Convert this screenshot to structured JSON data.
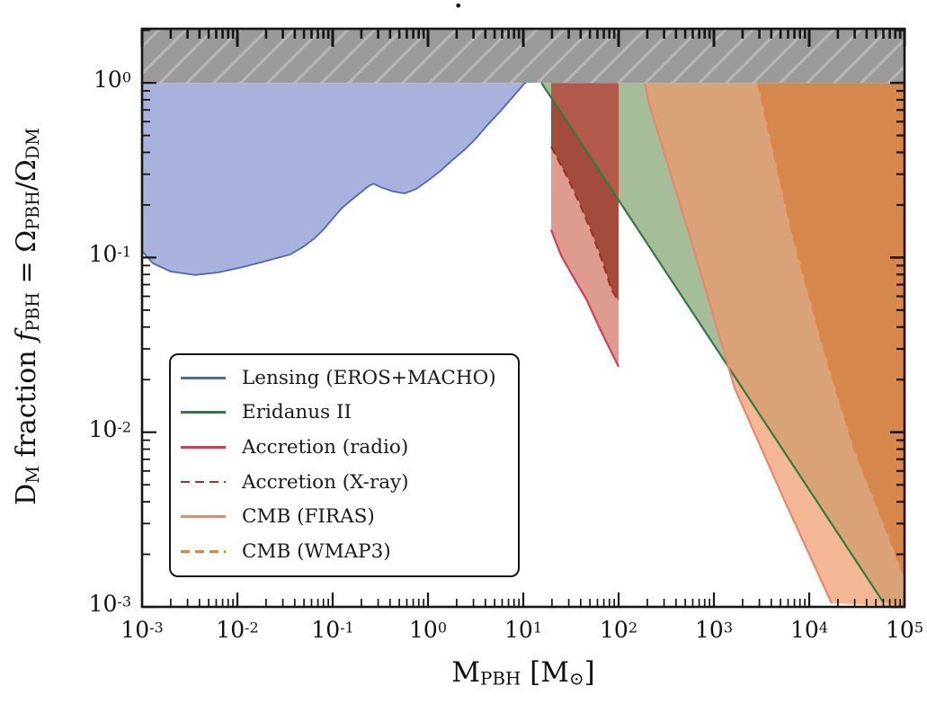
{
  "figure": {
    "title": ".",
    "background": "#ffffff"
  },
  "axes": {
    "x_label_tex": "M_{PBH} [M_{⊙}]",
    "y_label_tex": "D_{M} fraction *f*_{PBH} = Ω_{PBH}/Ω_{DM}",
    "x_tick_exponents": [
      -3,
      -2,
      -1,
      0,
      1,
      2,
      3,
      4,
      5
    ],
    "y_tick_exponents": [
      0,
      -1,
      -2,
      -3
    ]
  },
  "legend": {
    "position": "lower left",
    "items": [
      {
        "label": "Lensing (EROS+MACHO)",
        "color": "#5066b1",
        "dash": false
      },
      {
        "label": "Eridanus II",
        "color": "#2e7d3c",
        "dash": false
      },
      {
        "label": "Accretion (radio)",
        "color": "#da3b56",
        "dash": false
      },
      {
        "label": "Accretion (X-ray)",
        "color": "#a03028",
        "dash": true
      },
      {
        "label": "CMB (FIRAS)",
        "color": "#ef8566",
        "dash": false
      },
      {
        "label": "CMB (WMAP3)",
        "color": "#e8823a",
        "dash": true
      }
    ]
  },
  "chart_data": {
    "type": "area",
    "title": "",
    "xlabel": "M_PBH [M_sun]",
    "ylabel": "DM fraction f_PBH = Omega_PBH/Omega_DM",
    "xscale": "log",
    "yscale": "log",
    "xlim": [
      0.001,
      100000
    ],
    "ylim": [
      0.001,
      2.04
    ],
    "grid": false,
    "excluded_band": {
      "from": 1.0,
      "to": 2.04,
      "style": "gray-hatched",
      "meaning": "f_PBH > 1"
    },
    "series": [
      {
        "name": "Lensing (EROS+MACHO)",
        "color": "#5066b1",
        "width": 1.8,
        "dash": null,
        "points": [
          [
            0.001,
            0.109
          ],
          [
            0.0013,
            0.0926
          ],
          [
            0.002,
            0.0832
          ],
          [
            0.0036,
            0.0794
          ],
          [
            0.0063,
            0.0822
          ],
          [
            0.0114,
            0.0882
          ],
          [
            0.0205,
            0.0959
          ],
          [
            0.0358,
            0.104
          ],
          [
            0.0489,
            0.115
          ],
          [
            0.0647,
            0.129
          ],
          [
            0.0813,
            0.146
          ],
          [
            0.1,
            0.167
          ],
          [
            0.124,
            0.191
          ],
          [
            0.155,
            0.212
          ],
          [
            0.192,
            0.233
          ],
          [
            0.238,
            0.256
          ],
          [
            0.268,
            0.265
          ],
          [
            0.316,
            0.253
          ],
          [
            0.429,
            0.239
          ],
          [
            0.569,
            0.233
          ],
          [
            0.754,
            0.247
          ],
          [
            1.02,
            0.278
          ],
          [
            1.35,
            0.313
          ],
          [
            1.8,
            0.361
          ],
          [
            2.44,
            0.416
          ],
          [
            3.24,
            0.485
          ],
          [
            4.29,
            0.58
          ],
          [
            5.81,
            0.693
          ],
          [
            7.73,
            0.828
          ],
          [
            10.2,
            0.988
          ],
          [
            10.7,
            1.0
          ]
        ]
      },
      {
        "name": "Eridanus II",
        "color": "#2e7d3c",
        "width": 2.2,
        "dash": null,
        "points": [
          [
            15.5,
            1.0
          ],
          [
            59400,
            0.00107
          ]
        ]
      },
      {
        "name": "Accretion (radio)",
        "color": "#da3b56",
        "width": 2.2,
        "dash": null,
        "points": [
          [
            19.6,
            0.144
          ],
          [
            24.9,
            0.103
          ],
          [
            33,
            0.0785
          ],
          [
            45.8,
            0.0577
          ],
          [
            65.2,
            0.0381
          ],
          [
            100,
            0.0237
          ]
        ]
      },
      {
        "name": "Accretion (X-ray)",
        "color": "#a03028",
        "width": 2.2,
        "dash": "9,5.5",
        "points": [
          [
            19.6,
            0.431
          ],
          [
            28.4,
            0.295
          ],
          [
            39.3,
            0.202
          ],
          [
            52,
            0.14
          ],
          [
            67.6,
            0.0948
          ],
          [
            84,
            0.0657
          ],
          [
            100,
            0.0563
          ]
        ]
      },
      {
        "name": "CMB (FIRAS)",
        "color": "#ef8566",
        "width": 2.2,
        "dash": null,
        "points": [
          [
            188,
            1.0
          ],
          [
            209,
            0.762
          ],
          [
            594,
            0.119
          ],
          [
            1650,
            0.0179
          ],
          [
            5450,
            0.00411
          ],
          [
            17200,
            0.00105
          ]
        ]
      },
      {
        "name": "CMB (WMAP3)",
        "color": "#e8823a",
        "width": 2.2,
        "dash": "10,6",
        "points": [
          [
            2900,
            1.0
          ],
          [
            6470,
            0.145
          ],
          [
            13900,
            0.0312
          ],
          [
            29600,
            0.008
          ],
          [
            56900,
            0.00329
          ],
          [
            98000,
            0.00152
          ]
        ]
      }
    ],
    "regions": [
      {
        "name": "lensing-fill",
        "series": "Lensing (EROS+MACHO)",
        "close": [
          [
            0.001,
            1.0
          ]
        ],
        "fill": "#a9b1dd"
      },
      {
        "name": "eridanus-fill",
        "series": "Eridanus II",
        "close": [
          [
            100000,
            0.001
          ],
          [
            100000,
            1.0
          ]
        ],
        "fill": "rgba(75,123,49,0.5)"
      },
      {
        "name": "firas-fill",
        "series": "CMB (FIRAS)",
        "close": [
          [
            100000,
            0.001
          ],
          [
            100000,
            1.0
          ]
        ],
        "fill": "rgba(239,152,106,0.7)"
      },
      {
        "name": "wmap3-fill",
        "series": "CMB (WMAP3)",
        "close": [
          [
            100000,
            0.0015
          ],
          [
            100000,
            1.0
          ]
        ],
        "fill": "rgba(211,108,34,0.5)"
      },
      {
        "name": "accretion-overlap-light",
        "fill": "#b3594a",
        "points": [
          [
            19.6,
            1.0
          ],
          [
            100,
            1.0
          ],
          [
            100,
            0.209
          ],
          [
            19.6,
            0.818
          ]
        ]
      },
      {
        "name": "accretion-overlap-dark",
        "fill": "#a34b3d",
        "points": [
          [
            19.6,
            0.818
          ],
          [
            100,
            0.209
          ],
          [
            100,
            0.0563
          ],
          [
            84,
            0.0657
          ],
          [
            67.6,
            0.0948
          ],
          [
            52,
            0.14
          ],
          [
            39.3,
            0.202
          ],
          [
            28.4,
            0.295
          ],
          [
            19.6,
            0.431
          ]
        ]
      },
      {
        "name": "accretion-radio-only",
        "fill": "#dd9c8e",
        "points": [
          [
            19.6,
            0.431
          ],
          [
            28.4,
            0.295
          ],
          [
            39.3,
            0.202
          ],
          [
            52,
            0.14
          ],
          [
            67.6,
            0.0948
          ],
          [
            84,
            0.0657
          ],
          [
            100,
            0.0563
          ],
          [
            100,
            0.0237
          ],
          [
            65.2,
            0.0381
          ],
          [
            45.8,
            0.0577
          ],
          [
            33,
            0.0785
          ],
          [
            24.9,
            0.103
          ],
          [
            19.6,
            0.144
          ]
        ]
      }
    ]
  },
  "style": {
    "spine_color": "#161616",
    "tick_color": "#161616",
    "band_gray": "#9a9a9a",
    "band_hatch": "rgba(255,255,255,0.28)",
    "text_color": "#111111"
  }
}
